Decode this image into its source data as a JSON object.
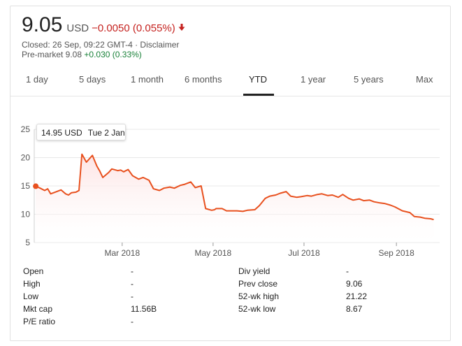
{
  "quote": {
    "price": "9.05",
    "currency": "USD",
    "change": "−0.0050 (0.055%)",
    "change_color": "#c5221f",
    "closed_info": "Closed: 26 Sep, 09:22 GMT-4 · Disclaimer",
    "premarket_label": "Pre-market 9.08",
    "premarket_change": "+0.030 (0.33%)",
    "premarket_color": "#188038"
  },
  "tabs": [
    {
      "label": "1 day"
    },
    {
      "label": "5 days"
    },
    {
      "label": "1 month"
    },
    {
      "label": "6 months"
    },
    {
      "label": "YTD"
    },
    {
      "label": "1 year"
    },
    {
      "label": "5 years"
    },
    {
      "label": "Max"
    }
  ],
  "active_tab": "YTD",
  "tooltip": {
    "value": "14.95 USD",
    "date": "Tue 2 Jan"
  },
  "chart_data": {
    "type": "line",
    "x_labels": [
      "Mar 2018",
      "May 2018",
      "Jul 2018",
      "Sep 2018"
    ],
    "y_ticks": [
      "25",
      "20",
      "15",
      "10",
      "5"
    ],
    "ylim": [
      5,
      25
    ],
    "line_color": "#e8501e",
    "fill_color": "#fde3e3",
    "grid": true,
    "series": [
      {
        "x": [
          "2018-01-02",
          "2018-01-05",
          "2018-01-08",
          "2018-01-10",
          "2018-01-12",
          "2018-01-15",
          "2018-01-17",
          "2018-01-19",
          "2018-01-22",
          "2018-01-24",
          "2018-01-26",
          "2018-01-29",
          "2018-01-31",
          "2018-02-02",
          "2018-02-05",
          "2018-02-07",
          "2018-02-09",
          "2018-02-12",
          "2018-02-14",
          "2018-02-16",
          "2018-02-20",
          "2018-02-22",
          "2018-02-26",
          "2018-02-28",
          "2018-03-02",
          "2018-03-05",
          "2018-03-08",
          "2018-03-12",
          "2018-03-15",
          "2018-03-19",
          "2018-03-22",
          "2018-03-26",
          "2018-03-29",
          "2018-04-02",
          "2018-04-05",
          "2018-04-09",
          "2018-04-12",
          "2018-04-16",
          "2018-04-19",
          "2018-04-23",
          "2018-04-26",
          "2018-04-30",
          "2018-05-02",
          "2018-05-03",
          "2018-05-07",
          "2018-05-10",
          "2018-05-14",
          "2018-05-17",
          "2018-05-21",
          "2018-05-24",
          "2018-05-29",
          "2018-06-01",
          "2018-06-05",
          "2018-06-08",
          "2018-06-12",
          "2018-06-15",
          "2018-06-19",
          "2018-06-22",
          "2018-06-26",
          "2018-06-29",
          "2018-07-03",
          "2018-07-06",
          "2018-07-10",
          "2018-07-13",
          "2018-07-17",
          "2018-07-20",
          "2018-07-24",
          "2018-07-27",
          "2018-07-31",
          "2018-08-03",
          "2018-08-07",
          "2018-08-10",
          "2018-08-14",
          "2018-08-17",
          "2018-08-21",
          "2018-08-24",
          "2018-08-28",
          "2018-08-31",
          "2018-09-05",
          "2018-09-10",
          "2018-09-13",
          "2018-09-17",
          "2018-09-20",
          "2018-09-24",
          "2018-09-26"
        ],
        "y": [
          14.95,
          14.6,
          14.2,
          14.5,
          13.6,
          13.9,
          14.1,
          14.3,
          13.6,
          13.4,
          13.8,
          13.9,
          14.2,
          20.6,
          19.2,
          19.8,
          20.4,
          18.5,
          17.6,
          16.5,
          17.4,
          18.0,
          17.7,
          17.8,
          17.5,
          17.9,
          16.8,
          16.2,
          16.5,
          16.0,
          14.5,
          14.2,
          14.6,
          14.8,
          14.6,
          15.1,
          15.3,
          15.7,
          14.7,
          15.0,
          11.0,
          10.7,
          10.8,
          11.0,
          11.0,
          10.6,
          10.6,
          10.6,
          10.5,
          10.7,
          10.8,
          11.5,
          12.8,
          13.2,
          13.4,
          13.7,
          14.0,
          13.2,
          13.0,
          13.1,
          13.3,
          13.2,
          13.5,
          13.6,
          13.3,
          13.4,
          13.0,
          13.5,
          12.8,
          12.5,
          12.7,
          12.4,
          12.5,
          12.2,
          12.0,
          11.9,
          11.6,
          11.3,
          10.6,
          10.3,
          9.6,
          9.5,
          9.3,
          9.2,
          9.05
        ]
      }
    ]
  },
  "stats": {
    "left": [
      {
        "label": "Open",
        "value": "-"
      },
      {
        "label": "High",
        "value": "-"
      },
      {
        "label": "Low",
        "value": "-"
      },
      {
        "label": "Mkt cap",
        "value": "11.56B"
      },
      {
        "label": "P/E ratio",
        "value": "-"
      }
    ],
    "right": [
      {
        "label": "Div yield",
        "value": "-"
      },
      {
        "label": "Prev close",
        "value": "9.06"
      },
      {
        "label": "52-wk high",
        "value": "21.22"
      },
      {
        "label": "52-wk low",
        "value": "8.67"
      }
    ]
  }
}
